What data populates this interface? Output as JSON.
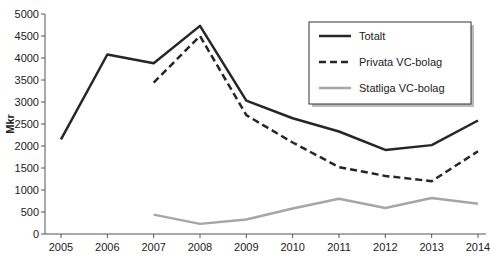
{
  "chart_data": {
    "type": "line",
    "y_label": "Mkr",
    "categories": [
      "2005",
      "2006",
      "2007",
      "2008",
      "2009",
      "2010",
      "2011",
      "2012",
      "2013",
      "2014"
    ],
    "series": [
      {
        "name": "Totalt",
        "color": "#262626",
        "line_style": "solid",
        "values": [
          2150,
          4080,
          3880,
          4730,
          3030,
          2630,
          2330,
          1910,
          2020,
          2580
        ]
      },
      {
        "name": "Privata VC-bolag",
        "color": "#262626",
        "line_style": "dashed",
        "values": [
          null,
          null,
          3440,
          4500,
          2700,
          2080,
          1520,
          1320,
          1200,
          1880
        ]
      },
      {
        "name": "Statliga VC-bolag",
        "color": "#a6a6a6",
        "line_style": "solid",
        "values": [
          null,
          null,
          440,
          230,
          330,
          580,
          800,
          590,
          820,
          690
        ]
      }
    ],
    "ylim": [
      0,
      5000
    ],
    "yticks": [
      0,
      500,
      1000,
      1500,
      2000,
      2500,
      3000,
      3500,
      4000,
      4500,
      5000
    ],
    "grid": false,
    "legend": "upper right"
  }
}
